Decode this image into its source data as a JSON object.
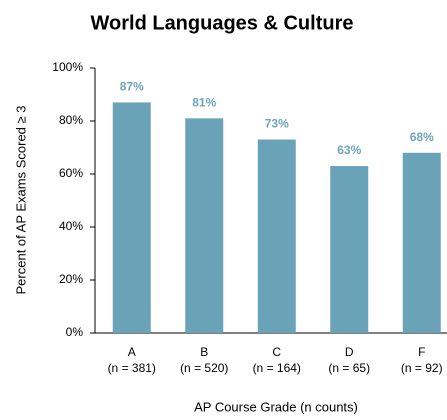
{
  "chart_data": {
    "type": "bar",
    "title": "World Languages & Culture",
    "ylabel": "Percent of AP Exams Scored ≥ 3",
    "xlabel": "AP Course  Grade  (n counts)",
    "categories": [
      "A",
      "B",
      "C",
      "D",
      "F"
    ],
    "category_counts": [
      "(n = 381)",
      "(n = 520)",
      "(n = 164)",
      "(n = 65)",
      "(n = 92)"
    ],
    "values": [
      87,
      81,
      73,
      63,
      68
    ],
    "value_labels": [
      "87%",
      "81%",
      "73%",
      "63%",
      "68%"
    ],
    "color": "#6aa3b8",
    "ylim": [
      0,
      100
    ],
    "yticks": [
      {
        "value": 0,
        "label": "0%"
      },
      {
        "value": 20,
        "label": "20%"
      },
      {
        "value": 40,
        "label": "40%"
      },
      {
        "value": 60,
        "label": "60%"
      },
      {
        "value": 80,
        "label": "80%"
      },
      {
        "value": 100,
        "label": "100%"
      }
    ],
    "grid": false
  }
}
